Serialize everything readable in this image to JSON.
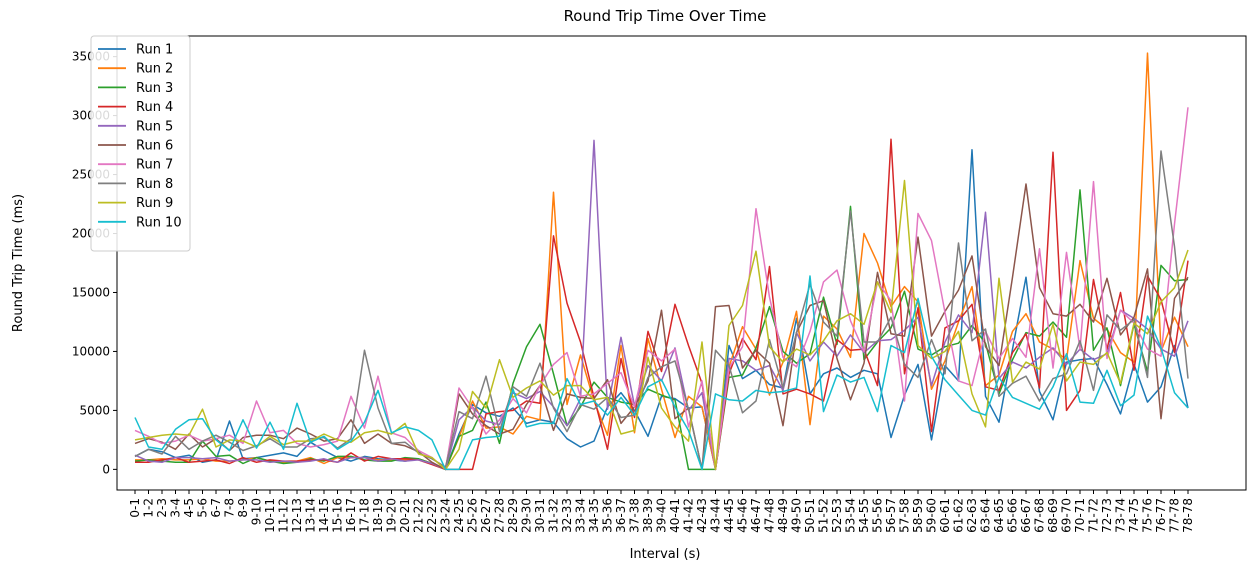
{
  "chart_data": {
    "type": "line",
    "title": "Round Trip Time Over Time",
    "xlabel": "Interval (s)",
    "ylabel": "Round Trip Time (ms)",
    "ylim": [
      -1750,
      36750
    ],
    "yticks": [
      0,
      5000,
      10000,
      15000,
      20000,
      25000,
      30000,
      35000
    ],
    "grid": false,
    "legend_position": "upper-left",
    "categories": [
      "0-1",
      "1-2",
      "2-3",
      "3-4",
      "4-5",
      "5-6",
      "6-7",
      "7-8",
      "8-9",
      "9-10",
      "10-11",
      "11-12",
      "12-13",
      "13-14",
      "14-15",
      "15-16",
      "16-17",
      "17-18",
      "18-19",
      "19-20",
      "20-21",
      "21-22",
      "22-23",
      "23-24",
      "24-25",
      "25-26",
      "26-27",
      "27-28",
      "28-29",
      "29-30",
      "30-31",
      "31-32",
      "32-33",
      "33-34",
      "34-35",
      "35-36",
      "36-37",
      "37-38",
      "38-39",
      "39-40",
      "40-41",
      "41-42",
      "42-43",
      "43-44",
      "44-45",
      "45-46",
      "46-47",
      "47-48",
      "48-49",
      "49-50",
      "50-51",
      "51-52",
      "52-53",
      "53-54",
      "54-55",
      "55-56",
      "56-57",
      "57-58",
      "58-59",
      "59-60",
      "60-61",
      "61-62",
      "62-63",
      "63-64",
      "64-65",
      "65-66",
      "66-67",
      "67-68",
      "68-69",
      "69-70",
      "70-71",
      "71-72",
      "72-73",
      "73-74",
      "74-75",
      "75-76",
      "76-77",
      "77-78",
      "78-78"
    ],
    "series": [
      {
        "name": "Run 1",
        "color": "#1f77b4",
        "values": [
          1100,
          1700,
          1500,
          1000,
          1200,
          600,
          800,
          4100,
          900,
          1000,
          1200,
          1400,
          1100,
          2300,
          1600,
          1000,
          700,
          1100,
          900,
          800,
          700,
          900,
          500,
          0,
          3000,
          5500,
          4800,
          4500,
          5200,
          3900,
          4200,
          4000,
          2600,
          1900,
          2400,
          5300,
          6500,
          5000,
          2800,
          6200,
          6000,
          5200,
          5300,
          0,
          10500,
          7700,
          8400,
          7200,
          6900,
          12800,
          6400,
          8100,
          8600,
          7800,
          8400,
          8100,
          2700,
          6300,
          8900,
          2500,
          8800,
          7500,
          27100,
          6200,
          4000,
          10200,
          16300,
          6600,
          4200,
          9100,
          9300,
          9400,
          7200,
          4700,
          8900,
          5700,
          7000,
          10500,
          5200
        ]
      },
      {
        "name": "Run 2",
        "color": "#ff7f0e",
        "values": [
          800,
          800,
          900,
          800,
          800,
          900,
          700,
          700,
          800,
          1000,
          700,
          600,
          700,
          1000,
          500,
          1000,
          1000,
          1000,
          800,
          800,
          800,
          900,
          500,
          0,
          2700,
          5800,
          3500,
          3600,
          3000,
          4500,
          4200,
          23500,
          5500,
          9700,
          5800,
          2900,
          10500,
          3100,
          11100,
          6800,
          2700,
          6200,
          5300,
          0,
          8700,
          12100,
          10200,
          6300,
          9100,
          13400,
          3800,
          13000,
          11900,
          9500,
          20000,
          17500,
          13800,
          15500,
          14200,
          6800,
          9200,
          12500,
          15500,
          7100,
          8000,
          11700,
          13200,
          10800,
          10200,
          9300,
          17700,
          12800,
          11900,
          9900,
          9100,
          35300,
          10000,
          12900,
          10400
        ]
      },
      {
        "name": "Run 3",
        "color": "#2ca02c",
        "values": [
          700,
          800,
          700,
          600,
          600,
          2400,
          1100,
          1200,
          500,
          1000,
          700,
          500,
          600,
          900,
          700,
          1100,
          1100,
          800,
          700,
          700,
          1000,
          900,
          500,
          0,
          2800,
          3300,
          5700,
          2200,
          7300,
          10400,
          12300,
          8100,
          3700,
          5300,
          7400,
          6100,
          5700,
          5500,
          6800,
          6300,
          5900,
          0,
          0,
          0,
          7800,
          8000,
          10300,
          13800,
          10000,
          9000,
          9800,
          14600,
          10600,
          22300,
          9300,
          10800,
          12000,
          15100,
          10200,
          9700,
          10400,
          10700,
          12200,
          10700,
          6400,
          9300,
          11600,
          11300,
          12500,
          11200,
          23700,
          10100,
          12000,
          7100,
          12300,
          8300,
          17300,
          16000,
          16100
        ]
      },
      {
        "name": "Run 4",
        "color": "#d62728",
        "values": [
          600,
          600,
          800,
          1000,
          600,
          700,
          800,
          500,
          1000,
          600,
          800,
          700,
          700,
          800,
          800,
          600,
          1400,
          700,
          1100,
          900,
          900,
          800,
          400,
          0,
          0,
          0,
          4700,
          4900,
          5000,
          5800,
          5600,
          19800,
          14100,
          10800,
          6100,
          1700,
          9400,
          4400,
          11700,
          8300,
          14000,
          10500,
          7300,
          0,
          8100,
          11100,
          9300,
          17200,
          6400,
          6800,
          6400,
          5800,
          11000,
          10100,
          10200,
          7100,
          28000,
          8100,
          13700,
          3200,
          12000,
          12600,
          14000,
          7000,
          6700,
          9900,
          11500,
          6900,
          26900,
          5000,
          6700,
          16100,
          10200,
          15000,
          8400,
          16400,
          14400,
          9900,
          17700
        ]
      },
      {
        "name": "Run 5",
        "color": "#9467bd",
        "values": [
          1200,
          700,
          600,
          1000,
          1000,
          900,
          1000,
          700,
          800,
          800,
          600,
          700,
          600,
          700,
          900,
          600,
          1000,
          1000,
          700,
          900,
          700,
          800,
          500,
          0,
          4200,
          5300,
          4100,
          3800,
          6500,
          6000,
          6600,
          5300,
          3700,
          6000,
          27900,
          5100,
          11200,
          5400,
          8800,
          7500,
          10300,
          5000,
          6500,
          0,
          9400,
          9200,
          8400,
          8800,
          6700,
          11600,
          9200,
          10800,
          9600,
          11400,
          9900,
          10900,
          11000,
          11800,
          12900,
          7100,
          10800,
          13100,
          11600,
          21800,
          7700,
          9100,
          8600,
          9500,
          10300,
          8900,
          10200,
          9300,
          9800,
          13500,
          12800,
          11900,
          10200,
          9600,
          12600
        ]
      },
      {
        "name": "Run 6",
        "color": "#8c564b",
        "values": [
          2200,
          2600,
          2300,
          1700,
          3000,
          1900,
          2600,
          1600,
          2700,
          2900,
          2900,
          2600,
          3500,
          3000,
          2400,
          2600,
          4200,
          2200,
          3000,
          2200,
          2000,
          1500,
          600,
          0,
          6400,
          4700,
          3700,
          3000,
          3400,
          5500,
          7100,
          3300,
          6400,
          6100,
          6000,
          7600,
          3900,
          5300,
          7500,
          13500,
          4300,
          5200,
          0,
          13800,
          13900,
          8600,
          10100,
          9000,
          3700,
          11600,
          13900,
          14300,
          9400,
          5900,
          9000,
          16700,
          11500,
          11300,
          19700,
          11300,
          13400,
          15200,
          18100,
          10400,
          8800,
          16300,
          24200,
          15400,
          13200,
          13000,
          14000,
          12500,
          16200,
          11400,
          12900,
          17000,
          4300,
          14500,
          16300
        ]
      },
      {
        "name": "Run 7",
        "color": "#e377c2",
        "values": [
          3300,
          2800,
          2200,
          2400,
          2900,
          2400,
          2600,
          2900,
          2200,
          5800,
          3100,
          3300,
          2200,
          1900,
          2100,
          2400,
          6200,
          3500,
          7900,
          3100,
          2700,
          1600,
          1000,
          0,
          6900,
          5200,
          3000,
          4200,
          6000,
          4800,
          7100,
          8900,
          9900,
          6200,
          6400,
          7300,
          8200,
          5300,
          10100,
          9200,
          10200,
          3600,
          7500,
          0,
          8600,
          10400,
          22100,
          14600,
          9500,
          8700,
          11700,
          15900,
          16900,
          12600,
          10000,
          15900,
          14300,
          5800,
          21700,
          19400,
          13300,
          7500,
          7100,
          11700,
          9400,
          11100,
          9500,
          18700,
          8600,
          18400,
          10200,
          24400,
          9400,
          13500,
          12400,
          10200,
          9600,
          20800,
          30700
        ]
      },
      {
        "name": "Run 8",
        "color": "#7f7f7f",
        "values": [
          1100,
          1700,
          1300,
          2800,
          1700,
          2400,
          2900,
          2300,
          1600,
          2000,
          2600,
          1900,
          1900,
          2600,
          2700,
          1800,
          2600,
          10100,
          5200,
          2200,
          2300,
          1400,
          900,
          200,
          4900,
          4300,
          7900,
          3200,
          7000,
          6200,
          9000,
          5200,
          3200,
          5500,
          5100,
          6100,
          4400,
          4600,
          7800,
          8700,
          9200,
          5100,
          0,
          10100,
          8800,
          4800,
          5800,
          11000,
          6900,
          11600,
          15700,
          12500,
          11300,
          21900,
          10800,
          10800,
          12900,
          8900,
          7800,
          11000,
          8100,
          19200,
          10900,
          11900,
          6200,
          7300,
          7900,
          5800,
          7700,
          8100,
          10900,
          6700,
          13100,
          11800,
          12700,
          7800,
          27000,
          18900,
          7700
        ]
      },
      {
        "name": "Run 9",
        "color": "#bcbd22",
        "values": [
          2500,
          2700,
          2900,
          3000,
          2900,
          5100,
          1900,
          2500,
          2400,
          1900,
          2800,
          2100,
          2400,
          2400,
          3000,
          2500,
          2300,
          3100,
          3300,
          3000,
          3900,
          1300,
          1000,
          0,
          1700,
          6600,
          5200,
          9300,
          6100,
          6900,
          7500,
          6300,
          7100,
          7100,
          5900,
          6100,
          3000,
          3300,
          9500,
          5200,
          3600,
          2400,
          10800,
          0,
          12200,
          13900,
          18500,
          10400,
          9100,
          10200,
          9700,
          10900,
          12600,
          13200,
          12300,
          15900,
          13300,
          24500,
          10500,
          9400,
          10000,
          11700,
          6400,
          3600,
          16200,
          7400,
          9100,
          8500,
          12300,
          7500,
          9100,
          8900,
          9900,
          7300,
          12400,
          11500,
          14200,
          15400,
          18600
        ]
      },
      {
        "name": "Run 10",
        "color": "#17becf",
        "values": [
          4400,
          1900,
          1700,
          3400,
          4200,
          4300,
          2500,
          1600,
          4200,
          1800,
          4000,
          1700,
          5600,
          2300,
          2800,
          1700,
          2400,
          4000,
          6700,
          3100,
          3600,
          3300,
          2500,
          0,
          0,
          2500,
          2700,
          2800,
          6800,
          3600,
          3900,
          3900,
          7700,
          5500,
          5800,
          4600,
          6100,
          4600,
          7000,
          7600,
          5300,
          3300,
          0,
          6400,
          5900,
          5800,
          6700,
          6500,
          6600,
          6900,
          16400,
          4900,
          8000,
          7400,
          7800,
          4900,
          10500,
          9900,
          14500,
          9600,
          7600,
          6300,
          5000,
          4600,
          7800,
          6100,
          5600,
          5100,
          7000,
          9800,
          5700,
          5600,
          8400,
          5400,
          6300,
          13000,
          10300,
          6500,
          5200
        ]
      }
    ]
  }
}
